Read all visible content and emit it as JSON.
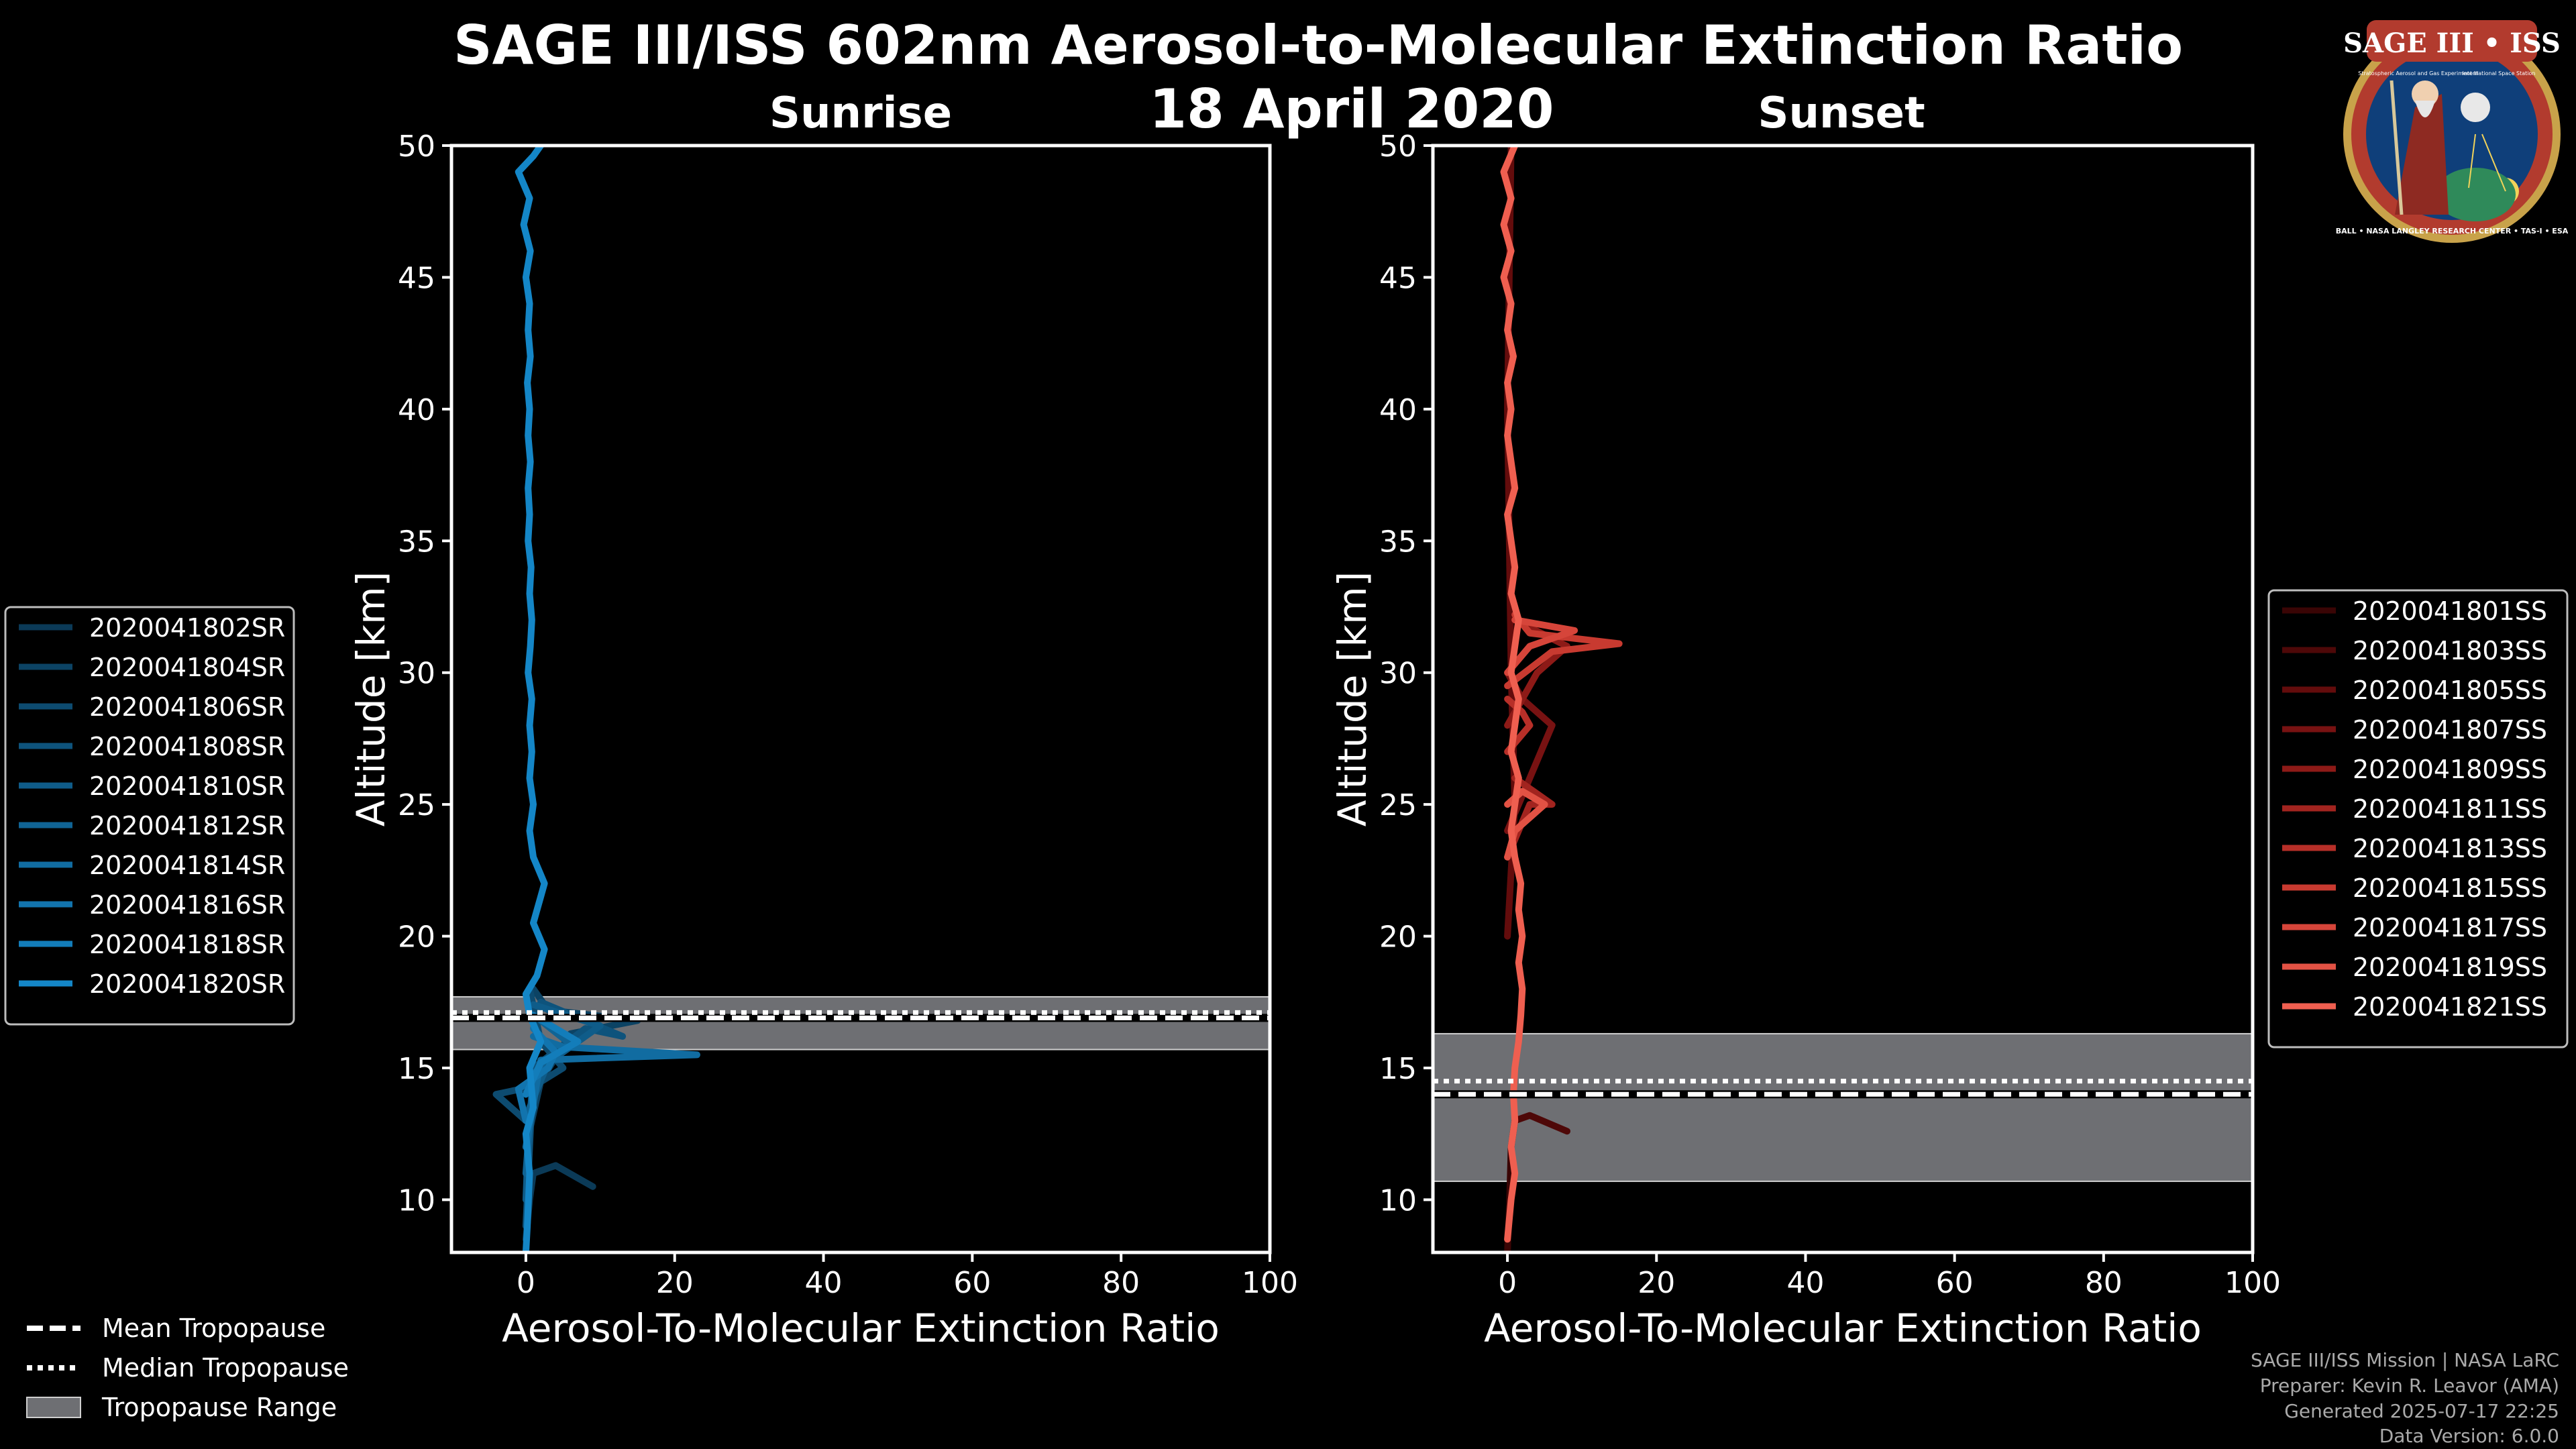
{
  "title": "SAGE III/ISS 602nm Aerosol-to-Molecular Extinction Ratio",
  "date": "18 April 2020",
  "logo": {
    "text": "SAGE III • ISS",
    "subtitle": "Stratospheric Aerosol and Gas Experiment III",
    "subtitle2": "International Space Station",
    "ring": "BALL • NASA LANGLEY RESEARCH CENTER • TAS-I • ESA"
  },
  "footer": [
    "SAGE III/ISS Mission | NASA LaRC",
    "Preparer: Kevin R. Leavor (AMA)",
    "Generated 2025-07-17 22:25",
    "Data Version: 6.0.0"
  ],
  "tropo_legend": [
    {
      "label": "Mean Tropopause",
      "style": "dashed"
    },
    {
      "label": "Median Tropopause",
      "style": "dotted"
    },
    {
      "label": "Tropopause Range",
      "style": "band"
    }
  ],
  "chart_data": [
    {
      "type": "line",
      "title": "Sunrise",
      "xlabel": "Aerosol-To-Molecular Extinction Ratio",
      "ylabel": "Altitude [km]",
      "xlim": [
        -10,
        100
      ],
      "ylim": [
        8,
        50
      ],
      "xticks": [
        0,
        20,
        40,
        60,
        80,
        100
      ],
      "yticks": [
        10,
        15,
        20,
        25,
        30,
        35,
        40,
        45,
        50
      ],
      "tropopause": {
        "mean": 16.9,
        "median": 16.9,
        "range": [
          15.7,
          17.7
        ]
      },
      "legend_position": "left",
      "series": [
        {
          "name": "2020041802SR",
          "color": "#0b3a57",
          "points": [
            [
              0,
              8.5
            ],
            [
              0.5,
              10
            ],
            [
              1,
              11
            ],
            [
              4,
              11.3
            ],
            [
              9,
              10.5
            ]
          ]
        },
        {
          "name": "2020041804SR",
          "color": "#0c4364",
          "points": [
            [
              0,
              12
            ],
            [
              0.8,
              13
            ],
            [
              2,
              14.5
            ],
            [
              6,
              16.3
            ],
            [
              15,
              16.8
            ],
            [
              3,
              17.2
            ],
            [
              1,
              18
            ]
          ]
        },
        {
          "name": "2020041806SR",
          "color": "#0d4b70",
          "points": [
            [
              0,
              13
            ],
            [
              -4,
              14
            ],
            [
              1,
              14.3
            ],
            [
              5,
              15
            ],
            [
              2,
              16
            ],
            [
              0.5,
              18
            ]
          ]
        },
        {
          "name": "2020041808SR",
          "color": "#0e537c",
          "points": [
            [
              0,
              9
            ],
            [
              0.5,
              12
            ],
            [
              1,
              15
            ],
            [
              8,
              16.5
            ],
            [
              13,
              16.2
            ],
            [
              2,
              17.5
            ]
          ]
        },
        {
          "name": "2020041810SR",
          "color": "#0f5c89",
          "points": [
            [
              0,
              10
            ],
            [
              0.5,
              13.5
            ],
            [
              3,
              15.2
            ],
            [
              10,
              16.6
            ],
            [
              1,
              17.4
            ]
          ]
        },
        {
          "name": "2020041812SR",
          "color": "#106495",
          "points": [
            [
              0,
              11
            ],
            [
              1,
              14.8
            ],
            [
              6,
              15.9
            ],
            [
              2,
              16.8
            ]
          ]
        },
        {
          "name": "2020041814SR",
          "color": "#116ca1",
          "points": [
            [
              0,
              12
            ],
            [
              2,
              15.3
            ],
            [
              23,
              15.5
            ],
            [
              5,
              15.8
            ],
            [
              1,
              16.2
            ]
          ]
        },
        {
          "name": "2020041816SR",
          "color": "#1274ae",
          "points": [
            [
              0,
              13
            ],
            [
              -1,
              14.2
            ],
            [
              3,
              15
            ],
            [
              4,
              15.6
            ],
            [
              1,
              16.5
            ]
          ]
        },
        {
          "name": "2020041818SR",
          "color": "#137dba",
          "points": [
            [
              0,
              14
            ],
            [
              2,
              15.2
            ],
            [
              7,
              16
            ],
            [
              1,
              17
            ]
          ]
        },
        {
          "name": "2020041820SR",
          "color": "#1486c7",
          "points": [
            [
              0,
              8
            ],
            [
              0.2,
              9
            ],
            [
              0.5,
              11
            ],
            [
              0,
              12.5
            ],
            [
              1,
              13.5
            ],
            [
              0.5,
              15
            ],
            [
              2,
              16
            ],
            [
              0.5,
              17
            ],
            [
              0,
              17.8
            ],
            [
              1.5,
              18.5
            ],
            [
              2.5,
              19.5
            ],
            [
              1,
              20.5
            ],
            [
              2,
              21.5
            ],
            [
              2.5,
              22
            ],
            [
              1,
              23
            ],
            [
              0.5,
              24
            ],
            [
              1,
              25
            ],
            [
              0.5,
              26
            ],
            [
              0.8,
              27
            ],
            [
              0.5,
              28
            ],
            [
              0.8,
              29
            ],
            [
              0.3,
              30
            ],
            [
              0.6,
              31
            ],
            [
              0.8,
              32
            ],
            [
              0.5,
              33
            ],
            [
              0.7,
              34
            ],
            [
              0.3,
              35
            ],
            [
              0.5,
              36
            ],
            [
              0.3,
              37
            ],
            [
              0.6,
              38
            ],
            [
              0.3,
              39
            ],
            [
              0.5,
              40
            ],
            [
              0.2,
              41
            ],
            [
              0.6,
              42
            ],
            [
              0.3,
              43
            ],
            [
              0.5,
              44
            ],
            [
              0,
              45
            ],
            [
              0.6,
              46
            ],
            [
              -0.3,
              47
            ],
            [
              0.5,
              48
            ],
            [
              -1,
              49
            ],
            [
              1,
              49.6
            ],
            [
              2,
              50
            ]
          ]
        }
      ]
    },
    {
      "type": "line",
      "title": "Sunset",
      "xlabel": "Aerosol-To-Molecular Extinction Ratio",
      "ylabel": "Altitude [km]",
      "xlim": [
        -10,
        100
      ],
      "ylim": [
        8,
        50
      ],
      "xticks": [
        0,
        20,
        40,
        60,
        80,
        100
      ],
      "yticks": [
        10,
        15,
        20,
        25,
        30,
        35,
        40,
        45,
        50
      ],
      "tropopause": {
        "mean": 14.0,
        "median": 14.5,
        "range": [
          10.7,
          16.3
        ]
      },
      "legend_position": "right",
      "series": [
        {
          "name": "2020041801SS",
          "color": "#3a0505",
          "points": [
            [
              0,
              8
            ],
            [
              0.3,
              10
            ],
            [
              0.5,
              12
            ],
            [
              1,
              13
            ]
          ]
        },
        {
          "name": "2020041803SS",
          "color": "#4e0808",
          "points": [
            [
              1,
              13
            ],
            [
              3,
              13.2
            ],
            [
              8,
              12.6
            ]
          ]
        },
        {
          "name": "2020041805SS",
          "color": "#630c0c",
          "points": [
            [
              0,
              20
            ],
            [
              1,
              25
            ],
            [
              0.5,
              30
            ],
            [
              0,
              40
            ],
            [
              0.5,
              50
            ]
          ]
        },
        {
          "name": "2020041807SS",
          "color": "#781212",
          "points": [
            [
              0,
              24
            ],
            [
              3,
              26
            ],
            [
              6,
              28
            ],
            [
              2,
              29
            ],
            [
              0,
              30
            ]
          ]
        },
        {
          "name": "2020041809SS",
          "color": "#8d1a17",
          "points": [
            [
              0,
              28
            ],
            [
              4,
              30
            ],
            [
              8,
              31
            ],
            [
              1,
              32
            ]
          ]
        },
        {
          "name": "2020041811SS",
          "color": "#a2241f",
          "points": [
            [
              0,
              23
            ],
            [
              3,
              25
            ],
            [
              6,
              25
            ],
            [
              1,
              26
            ]
          ]
        },
        {
          "name": "2020041813SS",
          "color": "#b72f28",
          "points": [
            [
              0,
              27
            ],
            [
              3,
              28
            ],
            [
              2,
              28.5
            ],
            [
              0,
              29
            ]
          ]
        },
        {
          "name": "2020041815SS",
          "color": "#c83a30",
          "points": [
            [
              0,
              29.5
            ],
            [
              6,
              30.8
            ],
            [
              15,
              31.1
            ],
            [
              3,
              31.5
            ],
            [
              1,
              32.2
            ]
          ]
        },
        {
          "name": "2020041817SS",
          "color": "#d6453a",
          "points": [
            [
              0,
              30
            ],
            [
              3,
              31
            ],
            [
              9,
              31.6
            ],
            [
              1,
              32
            ]
          ]
        },
        {
          "name": "2020041819SS",
          "color": "#e25244",
          "points": [
            [
              0,
              25
            ],
            [
              2,
              25.5
            ],
            [
              5,
              25
            ],
            [
              1,
              24
            ],
            [
              0,
              23
            ]
          ]
        },
        {
          "name": "2020041821SS",
          "color": "#ef5f50",
          "points": [
            [
              0,
              8.5
            ],
            [
              0.5,
              10
            ],
            [
              1,
              11
            ],
            [
              0.5,
              12
            ],
            [
              1,
              13
            ],
            [
              0.8,
              14
            ],
            [
              1,
              15
            ],
            [
              1.5,
              16
            ],
            [
              1.8,
              17
            ],
            [
              2,
              18
            ],
            [
              1.5,
              19
            ],
            [
              2,
              20
            ],
            [
              1.5,
              21
            ],
            [
              1.8,
              22
            ],
            [
              1,
              23
            ],
            [
              0.5,
              24
            ],
            [
              1,
              25
            ],
            [
              1.5,
              26
            ],
            [
              0.5,
              27
            ],
            [
              1,
              28
            ],
            [
              1.5,
              29
            ],
            [
              0.5,
              30
            ],
            [
              1,
              31
            ],
            [
              1.5,
              32
            ],
            [
              0.5,
              33
            ],
            [
              1,
              34
            ],
            [
              0.5,
              35
            ],
            [
              0,
              36
            ],
            [
              1,
              37
            ],
            [
              0.5,
              38
            ],
            [
              0,
              39
            ],
            [
              0.5,
              40
            ],
            [
              0,
              41
            ],
            [
              0.8,
              42
            ],
            [
              0,
              43
            ],
            [
              0.5,
              44
            ],
            [
              -0.5,
              45
            ],
            [
              0.5,
              46
            ],
            [
              -0.5,
              47
            ],
            [
              0.5,
              48
            ],
            [
              -0.5,
              49
            ],
            [
              1,
              50
            ]
          ]
        }
      ]
    }
  ]
}
